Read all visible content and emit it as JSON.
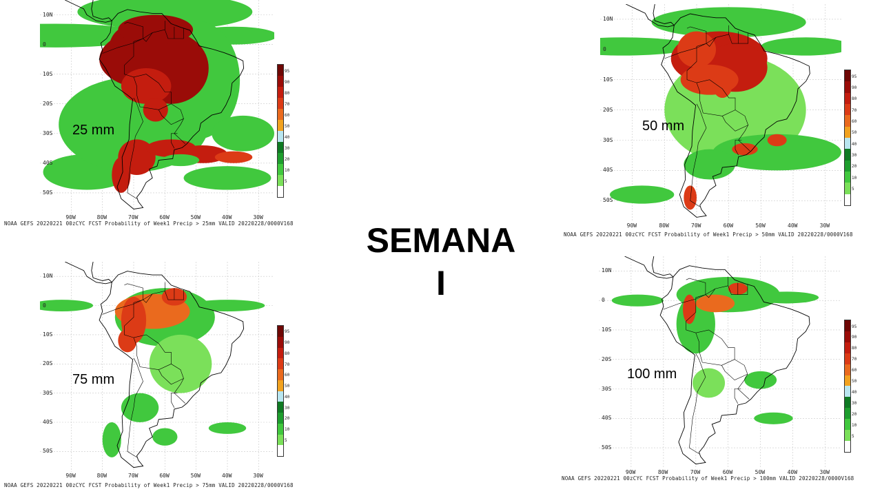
{
  "title": {
    "line1": "SEMANA",
    "line2": "I"
  },
  "colors": {
    "scale": [
      "#ffffff",
      "#7be05a",
      "#41c83e",
      "#1e9e2e",
      "#0f7a23",
      "#b9e6f0",
      "#f2a21f",
      "#ea6a1e",
      "#dc3b16",
      "#c41d0f",
      "#9a0c08",
      "#6e0705"
    ],
    "land_outline": "#000000",
    "grid": "#c8c8c8"
  },
  "colorbar_ticks": [
    "95",
    "90",
    "80",
    "70",
    "60",
    "50",
    "40",
    "30",
    "20",
    "10",
    "5"
  ],
  "lat_labels": [
    "10N",
    "0",
    "10S",
    "20S",
    "30S",
    "40S",
    "50S"
  ],
  "lon_labels": [
    "90W",
    "80W",
    "70W",
    "60W",
    "50W",
    "40W",
    "30W"
  ],
  "panels": [
    {
      "threshold": "25 mm",
      "caption": "NOAA GEFS 20220221 00zCYC FCST Probability of Week1 Precip > 25mm  VALID 20220228/0000V168"
    },
    {
      "threshold": "50 mm",
      "caption": "NOAA GEFS 20220221 00zCYC FCST Probability of Week1 Precip > 50mm  VALID 20220228/0000V168"
    },
    {
      "threshold": "75 mm",
      "caption": "NOAA GEFS 20220221 00zCYC FCST Probability of Week1 Precip > 75mm  VALID 20220228/0000V168"
    },
    {
      "threshold": "100 mm",
      "caption": "NOAA GEFS 20220221 00zCYC FCST Probability of Week1 Precip > 100mm  VALID 20220228/0000V168"
    }
  ]
}
